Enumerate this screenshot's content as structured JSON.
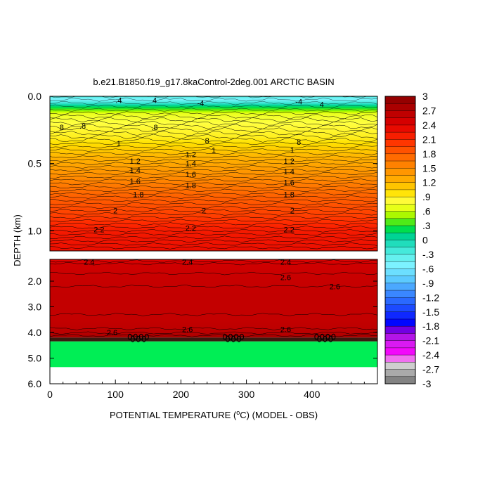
{
  "chart_data": {
    "type": "heatmap",
    "title": "b.e21.B1850.f19_g17.8kaControl-2deg.001 ARCTIC BASIN",
    "xlabel_pre": "POTENTIAL TEMPERATURE (",
    "xlabel_unit": "o",
    "xlabel_post": "C) (MODEL - OBS)",
    "ylabel": "DEPTH (km)",
    "xlim": [
      0,
      500
    ],
    "x_ticks": [
      {
        "value": 0,
        "label": "0"
      },
      {
        "value": 100,
        "label": "100"
      },
      {
        "value": 200,
        "label": "200"
      },
      {
        "value": 300,
        "label": "300"
      },
      {
        "value": 400,
        "label": "400"
      }
    ],
    "upper_panel": {
      "ylim": [
        0.0,
        1.15
      ],
      "y_ticks": [
        {
          "value": 0.0,
          "label": "0.0"
        },
        {
          "value": 0.5,
          "label": "0.5"
        },
        {
          "value": 1.0,
          "label": "1.0"
        }
      ],
      "profile": [
        {
          "depth": 0.0,
          "value": -0.2
        },
        {
          "depth": 0.02,
          "value": -0.5
        },
        {
          "depth": 0.05,
          "value": -0.2
        },
        {
          "depth": 0.07,
          "value": 0.1
        },
        {
          "depth": 0.1,
          "value": 0.4
        },
        {
          "depth": 0.13,
          "value": 0.7
        },
        {
          "depth": 0.2,
          "value": 0.8
        },
        {
          "depth": 0.3,
          "value": 0.9
        },
        {
          "depth": 0.35,
          "value": 1.0
        },
        {
          "depth": 0.45,
          "value": 1.2
        },
        {
          "depth": 0.55,
          "value": 1.4
        },
        {
          "depth": 0.65,
          "value": 1.6
        },
        {
          "depth": 0.75,
          "value": 1.8
        },
        {
          "depth": 0.9,
          "value": 2.0
        },
        {
          "depth": 1.0,
          "value": 2.2
        },
        {
          "depth": 1.15,
          "value": 2.3
        }
      ],
      "contour_labels": [
        {
          "x": 130,
          "depth": 0.48,
          "label": "1.2"
        },
        {
          "x": 130,
          "depth": 0.55,
          "label": "1.4"
        },
        {
          "x": 130,
          "depth": 0.63,
          "label": "1.6"
        },
        {
          "x": 135,
          "depth": 0.73,
          "label": "1.8"
        },
        {
          "x": 230,
          "depth": 0.05,
          "label": "-4"
        },
        {
          "x": 380,
          "depth": 0.04,
          "label": "-4"
        },
        {
          "x": 105,
          "depth": 0.35,
          "label": "1"
        },
        {
          "x": 250,
          "depth": 0.4,
          "label": "1"
        },
        {
          "x": 370,
          "depth": 0.4,
          "label": "1"
        },
        {
          "x": 215,
          "depth": 0.43,
          "label": "1.2"
        },
        {
          "x": 215,
          "depth": 0.5,
          "label": "1.4"
        },
        {
          "x": 215,
          "depth": 0.58,
          "label": "1.6"
        },
        {
          "x": 215,
          "depth": 0.66,
          "label": "1.8"
        },
        {
          "x": 365,
          "depth": 0.48,
          "label": "1.2"
        },
        {
          "x": 365,
          "depth": 0.56,
          "label": "1.4"
        },
        {
          "x": 365,
          "depth": 0.64,
          "label": "1.6"
        },
        {
          "x": 365,
          "depth": 0.73,
          "label": "1.8"
        },
        {
          "x": 100,
          "depth": 0.85,
          "label": "2"
        },
        {
          "x": 235,
          "depth": 0.85,
          "label": "2"
        },
        {
          "x": 370,
          "depth": 0.85,
          "label": "2"
        },
        {
          "x": 75,
          "depth": 0.99,
          "label": "2.2"
        },
        {
          "x": 215,
          "depth": 0.98,
          "label": "2.2"
        },
        {
          "x": 365,
          "depth": 0.99,
          "label": "2.2"
        },
        {
          "x": 18,
          "depth": 0.23,
          "label": "8"
        },
        {
          "x": 50,
          "depth": 0.22,
          "label": ".8"
        },
        {
          "x": 160,
          "depth": 0.23,
          "label": ".8"
        },
        {
          "x": 240,
          "depth": 0.33,
          "label": "8"
        },
        {
          "x": 380,
          "depth": 0.34,
          "label": "8"
        },
        {
          "x": 105,
          "depth": 0.03,
          "label": ".4"
        },
        {
          "x": 160,
          "depth": 0.03,
          "label": "4"
        },
        {
          "x": 415,
          "depth": 0.06,
          "label": "4"
        }
      ]
    },
    "lower_panel": {
      "ylim": [
        1.15,
        6.0
      ],
      "y_ticks": [
        {
          "value": 2.0,
          "label": "2.0"
        },
        {
          "value": 3.0,
          "label": "3.0"
        },
        {
          "value": 4.0,
          "label": "4.0"
        },
        {
          "value": 5.0,
          "label": "5.0"
        },
        {
          "value": 6.0,
          "label": "6.0"
        }
      ],
      "profile": [
        {
          "depth": 1.15,
          "value": 2.35
        },
        {
          "depth": 1.3,
          "value": 2.5
        },
        {
          "depth": 1.7,
          "value": 2.55
        },
        {
          "depth": 2.5,
          "value": 2.6
        },
        {
          "depth": 3.5,
          "value": 2.6
        },
        {
          "depth": 4.0,
          "value": 2.65
        },
        {
          "depth": 4.2,
          "value": 2.8
        }
      ],
      "bottom_band_depth": [
        4.2,
        4.35
      ],
      "masked_region_depth": [
        4.35,
        5.35
      ],
      "masked_color": "#00EE55",
      "contour_labels": [
        {
          "x": 60,
          "depth": 1.25,
          "label": "2.4"
        },
        {
          "x": 210,
          "depth": 1.25,
          "label": "2.4"
        },
        {
          "x": 360,
          "depth": 1.25,
          "label": "2.4"
        },
        {
          "x": 360,
          "depth": 1.85,
          "label": "2.6"
        },
        {
          "x": 435,
          "depth": 2.2,
          "label": "2.6"
        },
        {
          "x": 210,
          "depth": 3.88,
          "label": "2.6"
        },
        {
          "x": 360,
          "depth": 3.88,
          "label": "2.6"
        },
        {
          "x": 95,
          "depth": 4.0,
          "label": "2.6"
        }
      ]
    },
    "colorbar": {
      "min": -3,
      "max": 3,
      "step": 0.15,
      "tick_labels": [
        {
          "value": 3,
          "label": "3"
        },
        {
          "value": 2.7,
          "label": "2.7"
        },
        {
          "value": 2.4,
          "label": "2.4"
        },
        {
          "value": 2.1,
          "label": "2.1"
        },
        {
          "value": 1.8,
          "label": "1.8"
        },
        {
          "value": 1.5,
          "label": "1.5"
        },
        {
          "value": 1.2,
          "label": "1.2"
        },
        {
          "value": 0.9,
          "label": ".9"
        },
        {
          "value": 0.6,
          "label": ".6"
        },
        {
          "value": 0.3,
          "label": ".3"
        },
        {
          "value": 0,
          "label": "0"
        },
        {
          "value": -0.3,
          "label": "-.3"
        },
        {
          "value": -0.6,
          "label": "-.6"
        },
        {
          "value": -0.9,
          "label": "-.9"
        },
        {
          "value": -1.2,
          "label": "-1.2"
        },
        {
          "value": -1.5,
          "label": "-1.5"
        },
        {
          "value": -1.8,
          "label": "-1.8"
        },
        {
          "value": -2.1,
          "label": "-2.1"
        },
        {
          "value": -2.4,
          "label": "-2.4"
        },
        {
          "value": -2.7,
          "label": "-2.7"
        },
        {
          "value": -3,
          "label": "-3"
        }
      ],
      "color_stops": [
        {
          "value": -3.0,
          "color": "#707070"
        },
        {
          "value": -2.75,
          "color": "#b0b0b0"
        },
        {
          "value": -2.55,
          "color": "#e0e0e0"
        },
        {
          "value": -2.4,
          "color": "#ff00ff"
        },
        {
          "value": -2.1,
          "color": "#cc22ee"
        },
        {
          "value": -1.9,
          "color": "#8800dd"
        },
        {
          "value": -1.75,
          "color": "#0000ff"
        },
        {
          "value": -1.4,
          "color": "#1e50ff"
        },
        {
          "value": -1.1,
          "color": "#3c8cff"
        },
        {
          "value": -0.8,
          "color": "#5fd0ff"
        },
        {
          "value": -0.5,
          "color": "#7ff5ff"
        },
        {
          "value": -0.2,
          "color": "#40e8d8"
        },
        {
          "value": 0.05,
          "color": "#00d2a0"
        },
        {
          "value": 0.25,
          "color": "#00e040"
        },
        {
          "value": 0.45,
          "color": "#7ff000"
        },
        {
          "value": 0.6,
          "color": "#d8ff00"
        },
        {
          "value": 0.8,
          "color": "#ffff40"
        },
        {
          "value": 1.0,
          "color": "#ffe000"
        },
        {
          "value": 1.2,
          "color": "#ffb400"
        },
        {
          "value": 1.5,
          "color": "#ff8c00"
        },
        {
          "value": 1.8,
          "color": "#ff6000"
        },
        {
          "value": 2.1,
          "color": "#ff2800"
        },
        {
          "value": 2.4,
          "color": "#e00000"
        },
        {
          "value": 2.7,
          "color": "#b40000"
        },
        {
          "value": 3.0,
          "color": "#8a0000"
        }
      ]
    }
  }
}
